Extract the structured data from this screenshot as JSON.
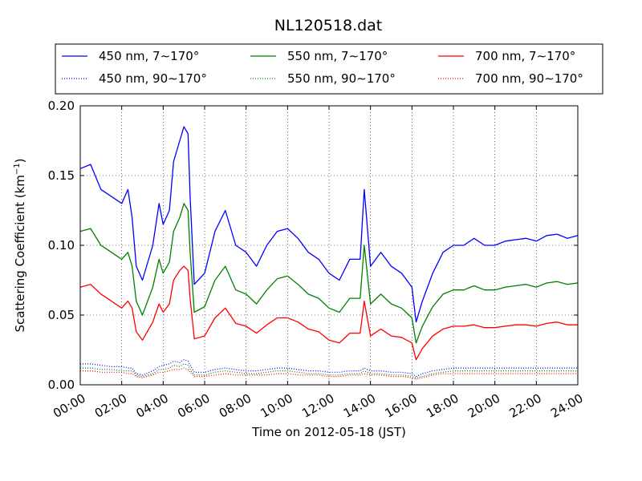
{
  "chart_data": {
    "type": "line",
    "title": "NL120518.dat",
    "xlabel": "Time on 2012-05-18 (JST)",
    "ylabel": "Scattering Coefficient (km",
    "ylabel_sup": "−1",
    "ylabel_end": ")",
    "xlim_hours": [
      0,
      24
    ],
    "ylim": [
      0,
      0.2
    ],
    "x_tick_labels": [
      "00:00",
      "02:00",
      "04:00",
      "06:00",
      "08:00",
      "10:00",
      "12:00",
      "14:00",
      "16:00",
      "18:00",
      "20:00",
      "22:00",
      "24:00"
    ],
    "y_ticks": [
      0.0,
      0.05,
      0.1,
      0.15,
      0.2
    ],
    "y_tick_labels": [
      "0.00",
      "0.05",
      "0.10",
      "0.15",
      "0.20"
    ],
    "grid": true,
    "legend_placement": "top",
    "x_hours": [
      0,
      0.5,
      1,
      1.5,
      2,
      2.3,
      2.5,
      2.7,
      3,
      3.5,
      3.8,
      4,
      4.3,
      4.5,
      4.8,
      5,
      5.2,
      5.3,
      5.5,
      6,
      6.5,
      7,
      7.5,
      8,
      8.5,
      9,
      9.5,
      10,
      10.5,
      11,
      11.5,
      12,
      12.5,
      13,
      13.5,
      13.7,
      14,
      14.5,
      15,
      15.5,
      16,
      16.2,
      16.5,
      17,
      17.5,
      18,
      18.5,
      19,
      19.5,
      20,
      20.5,
      21,
      21.5,
      22,
      22.5,
      23,
      23.5,
      24
    ],
    "series": [
      {
        "name": "450 nm, 7∼170°",
        "color": "#0000ff",
        "dash": "solid",
        "values": [
          0.155,
          0.158,
          0.14,
          0.135,
          0.13,
          0.14,
          0.12,
          0.085,
          0.075,
          0.1,
          0.13,
          0.115,
          0.125,
          0.16,
          0.175,
          0.185,
          0.18,
          0.135,
          0.072,
          0.08,
          0.11,
          0.125,
          0.1,
          0.095,
          0.085,
          0.1,
          0.11,
          0.112,
          0.105,
          0.095,
          0.09,
          0.08,
          0.075,
          0.09,
          0.09,
          0.14,
          0.085,
          0.095,
          0.085,
          0.08,
          0.07,
          0.045,
          0.06,
          0.08,
          0.095,
          0.1,
          0.1,
          0.105,
          0.1,
          0.1,
          0.103,
          0.104,
          0.105,
          0.103,
          0.107,
          0.108,
          0.105,
          0.107
        ]
      },
      {
        "name": "450 nm, 90∼170°",
        "color": "#0000ff",
        "dash": "dotted",
        "values": [
          0.015,
          0.015,
          0.014,
          0.013,
          0.013,
          0.012,
          0.012,
          0.008,
          0.007,
          0.01,
          0.013,
          0.014,
          0.015,
          0.017,
          0.016,
          0.018,
          0.017,
          0.014,
          0.009,
          0.009,
          0.011,
          0.012,
          0.011,
          0.01,
          0.01,
          0.011,
          0.012,
          0.012,
          0.011,
          0.01,
          0.01,
          0.009,
          0.009,
          0.01,
          0.01,
          0.012,
          0.01,
          0.01,
          0.009,
          0.009,
          0.008,
          0.006,
          0.008,
          0.01,
          0.011,
          0.012,
          0.012,
          0.012,
          0.012,
          0.012,
          0.012,
          0.012,
          0.012,
          0.012,
          0.012,
          0.012,
          0.012,
          0.012
        ]
      },
      {
        "name": "550 nm, 7∼170°",
        "color": "#008000",
        "dash": "solid",
        "values": [
          0.11,
          0.112,
          0.1,
          0.095,
          0.09,
          0.095,
          0.085,
          0.06,
          0.05,
          0.07,
          0.09,
          0.08,
          0.088,
          0.11,
          0.12,
          0.13,
          0.125,
          0.095,
          0.052,
          0.056,
          0.075,
          0.085,
          0.068,
          0.065,
          0.058,
          0.068,
          0.076,
          0.078,
          0.072,
          0.065,
          0.062,
          0.055,
          0.052,
          0.062,
          0.062,
          0.1,
          0.058,
          0.065,
          0.058,
          0.055,
          0.048,
          0.03,
          0.042,
          0.056,
          0.065,
          0.068,
          0.068,
          0.071,
          0.068,
          0.068,
          0.07,
          0.071,
          0.072,
          0.07,
          0.073,
          0.074,
          0.072,
          0.073
        ]
      },
      {
        "name": "550 nm, 90∼170°",
        "color": "#008000",
        "dash": "dotted",
        "values": [
          0.012,
          0.012,
          0.011,
          0.011,
          0.01,
          0.01,
          0.01,
          0.007,
          0.006,
          0.008,
          0.011,
          0.011,
          0.012,
          0.014,
          0.013,
          0.015,
          0.014,
          0.011,
          0.007,
          0.007,
          0.009,
          0.01,
          0.009,
          0.008,
          0.008,
          0.009,
          0.01,
          0.01,
          0.009,
          0.008,
          0.008,
          0.007,
          0.007,
          0.008,
          0.008,
          0.01,
          0.008,
          0.008,
          0.007,
          0.007,
          0.006,
          0.005,
          0.006,
          0.008,
          0.009,
          0.01,
          0.01,
          0.01,
          0.01,
          0.01,
          0.01,
          0.01,
          0.01,
          0.01,
          0.01,
          0.01,
          0.01,
          0.01
        ]
      },
      {
        "name": "700 nm, 7∼170°",
        "color": "#ff0000",
        "dash": "solid",
        "values": [
          0.07,
          0.072,
          0.065,
          0.06,
          0.055,
          0.06,
          0.055,
          0.038,
          0.032,
          0.045,
          0.058,
          0.052,
          0.058,
          0.075,
          0.082,
          0.085,
          0.082,
          0.062,
          0.033,
          0.035,
          0.048,
          0.055,
          0.044,
          0.042,
          0.037,
          0.043,
          0.048,
          0.048,
          0.045,
          0.04,
          0.038,
          0.032,
          0.03,
          0.037,
          0.037,
          0.06,
          0.035,
          0.04,
          0.035,
          0.034,
          0.03,
          0.018,
          0.026,
          0.035,
          0.04,
          0.042,
          0.042,
          0.043,
          0.041,
          0.041,
          0.042,
          0.043,
          0.043,
          0.042,
          0.044,
          0.045,
          0.043,
          0.043
        ]
      },
      {
        "name": "700 nm, 90∼170°",
        "color": "#ff0000",
        "dash": "dotted",
        "values": [
          0.01,
          0.01,
          0.009,
          0.009,
          0.009,
          0.008,
          0.008,
          0.006,
          0.005,
          0.007,
          0.009,
          0.009,
          0.01,
          0.011,
          0.011,
          0.012,
          0.011,
          0.009,
          0.006,
          0.006,
          0.007,
          0.008,
          0.007,
          0.007,
          0.007,
          0.007,
          0.008,
          0.008,
          0.007,
          0.007,
          0.007,
          0.006,
          0.006,
          0.007,
          0.007,
          0.008,
          0.007,
          0.007,
          0.006,
          0.006,
          0.005,
          0.004,
          0.005,
          0.007,
          0.008,
          0.008,
          0.008,
          0.008,
          0.008,
          0.008,
          0.008,
          0.008,
          0.008,
          0.008,
          0.008,
          0.008,
          0.008,
          0.008
        ]
      }
    ]
  }
}
